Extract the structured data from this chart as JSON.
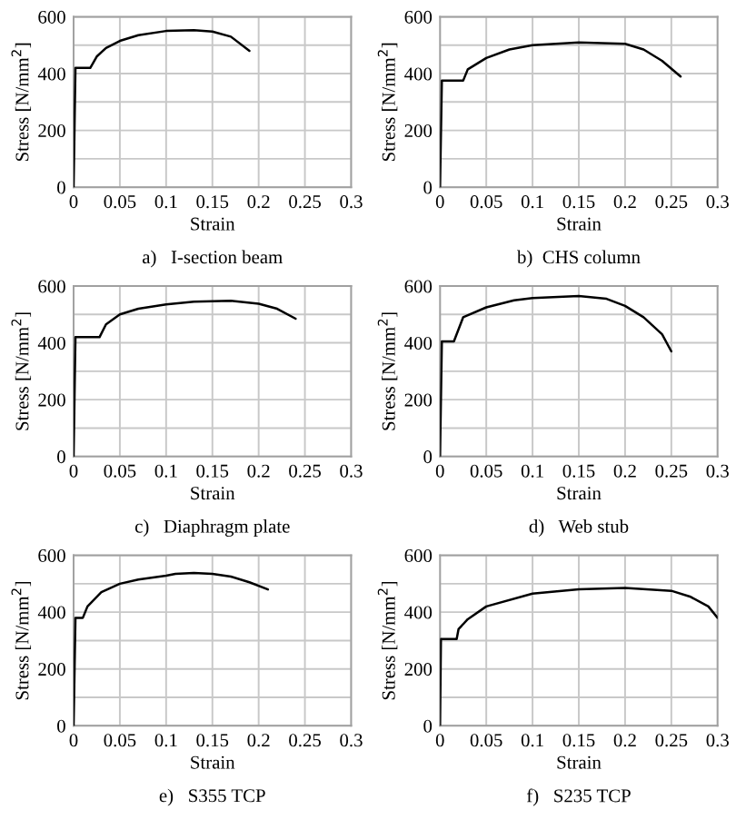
{
  "chart_data": [
    {
      "type": "line",
      "title": "a)   I-section beam",
      "xlabel": "Strain",
      "ylabel": "Stress [N/mm$^{2}$]",
      "xlim": [
        0,
        0.3
      ],
      "ylim": [
        0,
        600
      ],
      "xticks": [
        0,
        0.05,
        0.1,
        0.15,
        0.2,
        0.25,
        0.3
      ],
      "yticks": [
        0,
        {
          "value": 100,
          "label": null
        },
        200,
        {
          "value": 300,
          "label": null
        },
        400,
        {
          "value": 500,
          "label": null
        },
        600
      ],
      "grid": true,
      "series": [
        {
          "color": "#000000",
          "x": [
            0,
            0.002,
            0.018,
            0.025,
            0.035,
            0.05,
            0.07,
            0.1,
            0.13,
            0.15,
            0.17,
            0.19
          ],
          "values": [
            0,
            420,
            420,
            460,
            490,
            515,
            535,
            550,
            553,
            548,
            530,
            480
          ]
        }
      ]
    },
    {
      "type": "line",
      "title": "b)  CHS column",
      "xlabel": "Strain",
      "ylabel": "Stress [N/mm$^{2}$]",
      "xlim": [
        0,
        0.3
      ],
      "ylim": [
        0,
        600
      ],
      "xticks": [
        0,
        0.05,
        0.1,
        0.15,
        0.2,
        0.25,
        0.3
      ],
      "yticks": [
        0,
        {
          "value": 100,
          "label": null
        },
        200,
        {
          "value": 300,
          "label": null
        },
        400,
        {
          "value": 500,
          "label": null
        },
        600
      ],
      "grid": true,
      "series": [
        {
          "color": "#000000",
          "x": [
            0,
            0.002,
            0.025,
            0.03,
            0.05,
            0.075,
            0.1,
            0.15,
            0.2,
            0.22,
            0.24,
            0.26
          ],
          "values": [
            0,
            375,
            375,
            415,
            455,
            485,
            500,
            510,
            505,
            485,
            445,
            390
          ]
        }
      ]
    },
    {
      "type": "line",
      "title": "c)   Diaphragm plate",
      "xlabel": "Strain",
      "ylabel": "Stress [N/mm$^{2}$]",
      "xlim": [
        0,
        0.3
      ],
      "ylim": [
        0,
        600
      ],
      "xticks": [
        0,
        0.05,
        0.1,
        0.15,
        0.2,
        0.25,
        0.3
      ],
      "yticks": [
        0,
        {
          "value": 100,
          "label": null
        },
        200,
        {
          "value": 300,
          "label": null
        },
        400,
        {
          "value": 500,
          "label": null
        },
        600
      ],
      "grid": true,
      "series": [
        {
          "color": "#000000",
          "x": [
            0,
            0.002,
            0.028,
            0.035,
            0.05,
            0.07,
            0.1,
            0.13,
            0.17,
            0.2,
            0.22,
            0.24
          ],
          "values": [
            0,
            420,
            420,
            465,
            500,
            520,
            535,
            545,
            548,
            538,
            520,
            485
          ]
        }
      ]
    },
    {
      "type": "line",
      "title": "d)   Web stub",
      "xlabel": "Strain",
      "ylabel": "Stress [N/mm$^{2}$]",
      "xlim": [
        0,
        0.3
      ],
      "ylim": [
        0,
        600
      ],
      "xticks": [
        0,
        0.05,
        0.1,
        0.15,
        0.2,
        0.25,
        0.3
      ],
      "yticks": [
        0,
        {
          "value": 100,
          "label": null
        },
        200,
        {
          "value": 300,
          "label": null
        },
        400,
        {
          "value": 500,
          "label": null
        },
        600
      ],
      "grid": true,
      "series": [
        {
          "color": "#000000",
          "x": [
            0,
            0.002,
            0.015,
            0.025,
            0.05,
            0.08,
            0.1,
            0.15,
            0.18,
            0.2,
            0.22,
            0.24,
            0.25
          ],
          "values": [
            0,
            405,
            405,
            490,
            525,
            550,
            558,
            565,
            555,
            530,
            490,
            430,
            370
          ]
        }
      ]
    },
    {
      "type": "line",
      "title": "e)   S355 TCP",
      "xlabel": "Strain",
      "ylabel": "Stress [N/mm$^{2}$]",
      "xlim": [
        0,
        0.3
      ],
      "ylim": [
        0,
        600
      ],
      "xticks": [
        0,
        0.05,
        0.1,
        0.15,
        0.2,
        0.25,
        0.3
      ],
      "yticks": [
        0,
        {
          "value": 100,
          "label": null
        },
        200,
        {
          "value": 300,
          "label": null
        },
        400,
        {
          "value": 500,
          "label": null
        },
        600
      ],
      "grid": true,
      "series": [
        {
          "color": "#000000",
          "x": [
            0,
            0.002,
            0.01,
            0.015,
            0.03,
            0.05,
            0.07,
            0.1,
            0.11,
            0.13,
            0.15,
            0.17,
            0.19,
            0.21
          ],
          "values": [
            0,
            380,
            380,
            420,
            470,
            500,
            515,
            528,
            535,
            538,
            535,
            525,
            505,
            480
          ]
        }
      ]
    },
    {
      "type": "line",
      "title": "f)   S235 TCP",
      "xlabel": "Strain",
      "ylabel": "Stress [N/mm$^{2}$]",
      "xlim": [
        0,
        0.3
      ],
      "ylim": [
        0,
        600
      ],
      "xticks": [
        0,
        0.05,
        0.1,
        0.15,
        0.2,
        0.25,
        0.3
      ],
      "yticks": [
        0,
        {
          "value": 100,
          "label": null
        },
        200,
        {
          "value": 300,
          "label": null
        },
        400,
        {
          "value": 500,
          "label": null
        },
        600
      ],
      "grid": true,
      "series": [
        {
          "color": "#000000",
          "x": [
            0,
            0.001,
            0.018,
            0.02,
            0.03,
            0.05,
            0.1,
            0.15,
            0.2,
            0.25,
            0.27,
            0.29,
            0.3
          ],
          "values": [
            0,
            305,
            305,
            340,
            375,
            420,
            465,
            480,
            485,
            475,
            455,
            420,
            380
          ]
        }
      ]
    }
  ]
}
